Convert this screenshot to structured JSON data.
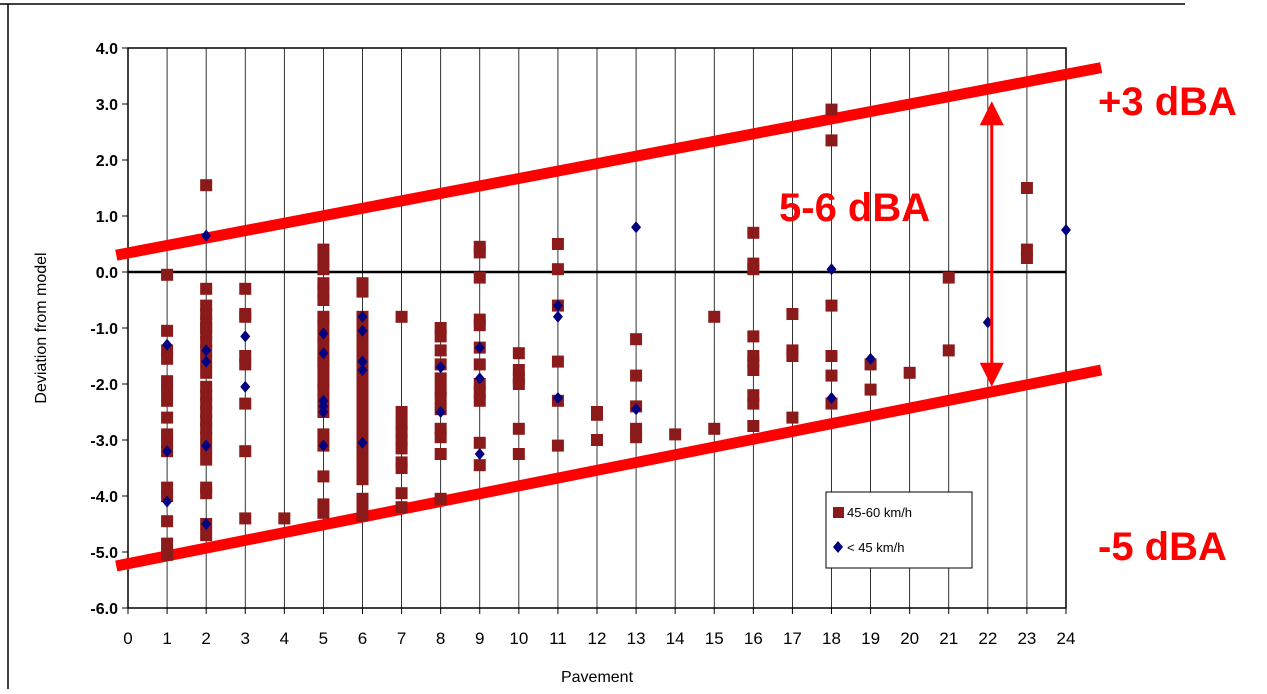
{
  "chart_data": {
    "type": "scatter",
    "xlabel": "Pavement",
    "ylabel": "Deviation from model",
    "xlim": [
      0,
      24
    ],
    "ylim": [
      -6.0,
      4.0
    ],
    "x_ticks": [
      "0",
      "1",
      "2",
      "3",
      "4",
      "5",
      "6",
      "7",
      "8",
      "9",
      "10",
      "11",
      "12",
      "13",
      "14",
      "15",
      "16",
      "17",
      "18",
      "19",
      "20",
      "21",
      "22",
      "23",
      "24"
    ],
    "y_ticks": [
      "4.0",
      "3.0",
      "2.0",
      "1.0",
      "0.0",
      "-1.0",
      "-2.0",
      "-3.0",
      "-4.0",
      "-5.0",
      "-6.0"
    ],
    "grid": "vertical",
    "legend_position": "lower-right",
    "series": [
      {
        "name": "45-60 km/h",
        "marker": "square",
        "color": "#8b1a1a",
        "points": [
          [
            1,
            -0.05
          ],
          [
            1,
            -1.05
          ],
          [
            1,
            -1.4
          ],
          [
            1,
            -1.55
          ],
          [
            1,
            -1.95
          ],
          [
            1,
            -2.1
          ],
          [
            1,
            -2.3
          ],
          [
            1,
            -2.6
          ],
          [
            1,
            -2.9
          ],
          [
            1,
            -3.05
          ],
          [
            1,
            -3.2
          ],
          [
            1,
            -3.85
          ],
          [
            1,
            -4.0
          ],
          [
            1,
            -4.45
          ],
          [
            1,
            -4.85
          ],
          [
            1,
            -5.05
          ],
          [
            2,
            1.55
          ],
          [
            2,
            -0.3
          ],
          [
            2,
            -0.6
          ],
          [
            2,
            -0.75
          ],
          [
            2,
            -0.9
          ],
          [
            2,
            -1.0
          ],
          [
            2,
            -1.1
          ],
          [
            2,
            -1.25
          ],
          [
            2,
            -1.4
          ],
          [
            2,
            -1.6
          ],
          [
            2,
            -1.8
          ],
          [
            2,
            -2.05
          ],
          [
            2,
            -2.2
          ],
          [
            2,
            -2.35
          ],
          [
            2,
            -2.5
          ],
          [
            2,
            -2.65
          ],
          [
            2,
            -2.8
          ],
          [
            2,
            -2.95
          ],
          [
            2,
            -3.15
          ],
          [
            2,
            -3.35
          ],
          [
            2,
            -3.85
          ],
          [
            2,
            -3.95
          ],
          [
            2,
            -4.5
          ],
          [
            2,
            -4.7
          ],
          [
            3,
            -0.3
          ],
          [
            3,
            -0.75
          ],
          [
            3,
            -0.8
          ],
          [
            3,
            -1.5
          ],
          [
            3,
            -1.65
          ],
          [
            3,
            -2.35
          ],
          [
            3,
            -3.2
          ],
          [
            3,
            -4.4
          ],
          [
            4,
            -4.4
          ],
          [
            5,
            0.4
          ],
          [
            5,
            0.2
          ],
          [
            5,
            0.05
          ],
          [
            5,
            -0.2
          ],
          [
            5,
            -0.35
          ],
          [
            5,
            -0.5
          ],
          [
            5,
            -0.8
          ],
          [
            5,
            -0.95
          ],
          [
            5,
            -1.15
          ],
          [
            5,
            -1.3
          ],
          [
            5,
            -1.5
          ],
          [
            5,
            -1.6
          ],
          [
            5,
            -1.75
          ],
          [
            5,
            -1.95
          ],
          [
            5,
            -2.1
          ],
          [
            5,
            -2.3
          ],
          [
            5,
            -2.5
          ],
          [
            5,
            -2.9
          ],
          [
            5,
            -3.1
          ],
          [
            5,
            -3.65
          ],
          [
            5,
            -4.15
          ],
          [
            5,
            -4.3
          ],
          [
            6,
            -0.2
          ],
          [
            6,
            -0.35
          ],
          [
            6,
            -0.8
          ],
          [
            6,
            -0.9
          ],
          [
            6,
            -1.0
          ],
          [
            6,
            -1.15
          ],
          [
            6,
            -1.3
          ],
          [
            6,
            -1.45
          ],
          [
            6,
            -1.6
          ],
          [
            6,
            -1.8
          ],
          [
            6,
            -1.95
          ],
          [
            6,
            -2.1
          ],
          [
            6,
            -2.25
          ],
          [
            6,
            -2.4
          ],
          [
            6,
            -2.55
          ],
          [
            6,
            -2.7
          ],
          [
            6,
            -2.85
          ],
          [
            6,
            -3.0
          ],
          [
            6,
            -3.15
          ],
          [
            6,
            -3.35
          ],
          [
            6,
            -3.5
          ],
          [
            6,
            -3.7
          ],
          [
            6,
            -4.05
          ],
          [
            6,
            -4.2
          ],
          [
            6,
            -4.35
          ],
          [
            7,
            -0.8
          ],
          [
            7,
            -2.5
          ],
          [
            7,
            -2.7
          ],
          [
            7,
            -2.85
          ],
          [
            7,
            -3.0
          ],
          [
            7,
            -3.15
          ],
          [
            7,
            -3.4
          ],
          [
            7,
            -3.5
          ],
          [
            7,
            -3.95
          ],
          [
            7,
            -4.2
          ],
          [
            8,
            -1.0
          ],
          [
            8,
            -1.15
          ],
          [
            8,
            -1.4
          ],
          [
            8,
            -1.65
          ],
          [
            8,
            -1.9
          ],
          [
            8,
            -2.1
          ],
          [
            8,
            -2.25
          ],
          [
            8,
            -2.45
          ],
          [
            8,
            -2.8
          ],
          [
            8,
            -2.95
          ],
          [
            8,
            -3.25
          ],
          [
            8,
            -4.05
          ],
          [
            9,
            0.45
          ],
          [
            9,
            0.35
          ],
          [
            9,
            -0.1
          ],
          [
            9,
            -0.85
          ],
          [
            9,
            -0.95
          ],
          [
            9,
            -1.35
          ],
          [
            9,
            -1.65
          ],
          [
            9,
            -2.0
          ],
          [
            9,
            -2.15
          ],
          [
            9,
            -2.3
          ],
          [
            9,
            -3.05
          ],
          [
            9,
            -3.45
          ],
          [
            10,
            -1.45
          ],
          [
            10,
            -1.75
          ],
          [
            10,
            -1.9
          ],
          [
            10,
            -2.0
          ],
          [
            10,
            -2.8
          ],
          [
            10,
            -3.25
          ],
          [
            11,
            0.5
          ],
          [
            11,
            0.05
          ],
          [
            11,
            -0.6
          ],
          [
            11,
            -1.6
          ],
          [
            11,
            -2.3
          ],
          [
            11,
            -3.1
          ],
          [
            12,
            -2.5
          ],
          [
            12,
            -2.55
          ],
          [
            12,
            -3.0
          ],
          [
            13,
            -1.2
          ],
          [
            13,
            -1.85
          ],
          [
            13,
            -2.4
          ],
          [
            13,
            -2.8
          ],
          [
            13,
            -2.95
          ],
          [
            14,
            -2.9
          ],
          [
            15,
            -0.8
          ],
          [
            15,
            -2.8
          ],
          [
            16,
            0.7
          ],
          [
            16,
            0.15
          ],
          [
            16,
            0.05
          ],
          [
            16,
            -1.15
          ],
          [
            16,
            -1.5
          ],
          [
            16,
            -1.6
          ],
          [
            16,
            -1.75
          ],
          [
            16,
            -2.2
          ],
          [
            16,
            -2.35
          ],
          [
            16,
            -2.75
          ],
          [
            17,
            -0.75
          ],
          [
            17,
            -1.4
          ],
          [
            17,
            -1.5
          ],
          [
            17,
            -2.6
          ],
          [
            18,
            2.9
          ],
          [
            18,
            2.35
          ],
          [
            18,
            -0.6
          ],
          [
            18,
            -1.5
          ],
          [
            18,
            -1.85
          ],
          [
            18,
            -2.35
          ],
          [
            19,
            -1.65
          ],
          [
            19,
            -2.1
          ],
          [
            20,
            -1.8
          ],
          [
            21,
            -0.1
          ],
          [
            21,
            -1.4
          ],
          [
            23,
            1.5
          ],
          [
            23,
            0.4
          ],
          [
            23,
            0.25
          ]
        ]
      },
      {
        "name": "< 45 km/h",
        "marker": "diamond",
        "color": "#000080",
        "points": [
          [
            1,
            -1.3
          ],
          [
            1,
            -3.2
          ],
          [
            1,
            -4.1
          ],
          [
            2,
            0.65
          ],
          [
            2,
            -1.4
          ],
          [
            2,
            -1.6
          ],
          [
            2,
            -3.1
          ],
          [
            2,
            -4.5
          ],
          [
            3,
            -1.15
          ],
          [
            3,
            -2.05
          ],
          [
            5,
            -1.1
          ],
          [
            5,
            -1.45
          ],
          [
            5,
            -2.3
          ],
          [
            5,
            -2.4
          ],
          [
            5,
            -2.5
          ],
          [
            5,
            -3.1
          ],
          [
            6,
            -0.8
          ],
          [
            6,
            -1.05
          ],
          [
            6,
            -1.6
          ],
          [
            6,
            -1.75
          ],
          [
            6,
            -3.05
          ],
          [
            8,
            -1.7
          ],
          [
            8,
            -2.5
          ],
          [
            9,
            -1.35
          ],
          [
            9,
            -1.9
          ],
          [
            9,
            -3.25
          ],
          [
            11,
            -0.6
          ],
          [
            11,
            -0.8
          ],
          [
            11,
            -2.25
          ],
          [
            13,
            0.8
          ],
          [
            13,
            -2.45
          ],
          [
            18,
            0.05
          ],
          [
            18,
            -2.25
          ],
          [
            19,
            -1.55
          ],
          [
            22,
            -0.9
          ],
          [
            24,
            0.75
          ]
        ]
      }
    ],
    "reference_lines": [
      {
        "kind": "zero",
        "color": "#000000",
        "y": 0.0
      },
      {
        "kind": "upper_band",
        "color": "#ff0000",
        "from": [
          -0.3,
          0.3
        ],
        "to": [
          24.9,
          3.65
        ]
      },
      {
        "kind": "lower_band",
        "color": "#ff0000",
        "from": [
          -0.3,
          -5.25
        ],
        "to": [
          24.9,
          -1.75
        ]
      }
    ],
    "double_arrow": {
      "x": 22.1,
      "y_top": 3.05,
      "y_bottom": -2.05,
      "color": "#ff0000"
    },
    "annotations": [
      {
        "id": "upper",
        "text": "+3 dBA"
      },
      {
        "id": "middle",
        "text": "5-6 dBA"
      },
      {
        "id": "lower",
        "text": "-5 dBA"
      }
    ]
  }
}
